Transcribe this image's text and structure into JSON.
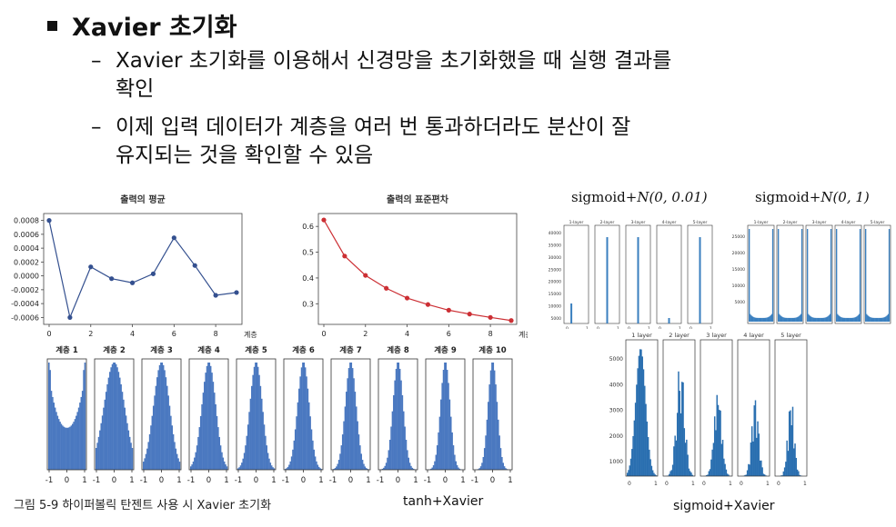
{
  "heading": "Xavier 초기화",
  "bullets": [
    {
      "line1": "Xavier 초기화를 이용해서 신경망을 초기화했을 때 실행 결과를",
      "line2": "확인"
    },
    {
      "line1": "이제 입력 데이터가 계층을 여러 번 통과하더라도 분산이 잘",
      "line2": "유지되는 것을 확인할 수 있음"
    }
  ],
  "figure_caption": "그림 5-9 하이퍼볼릭 탄젠트 사용 시 Xavier 초기화",
  "labels": {
    "tanh_xavier": "tanh+Xavier",
    "sigmoid_small": "sigmoid+",
    "sigmoid_small_dist": "N(0, 0.01)",
    "sigmoid_one": "sigmoid+",
    "sigmoid_one_dist": "N(0, 1)",
    "sigmoid_xavier": "sigmoid+Xavier"
  },
  "chart_data": [
    {
      "type": "line",
      "title": "출력의 평균",
      "xlabel": "계층",
      "x": [
        0,
        1,
        2,
        3,
        4,
        5,
        6,
        7,
        8,
        9
      ],
      "y": [
        0.0008,
        -0.0006,
        0.00013,
        -4e-05,
        -0.0001,
        3e-05,
        0.00055,
        0.00015,
        -0.00028,
        -0.00024
      ],
      "xticks": [
        "0",
        "2",
        "4",
        "6",
        "8"
      ],
      "yticks": [
        "0.0008",
        "0.0006",
        "0.0004",
        "0.0002",
        "0.0000",
        "-0.0002",
        "-0.0004",
        "-0.0006"
      ],
      "ylim": [
        -0.0007,
        0.0009
      ],
      "color": "#34508f"
    },
    {
      "type": "line",
      "title": "출력의 표준편차",
      "xlabel": "계층",
      "x": [
        0,
        1,
        2,
        3,
        4,
        5,
        6,
        7,
        8,
        9
      ],
      "y": [
        0.625,
        0.485,
        0.41,
        0.36,
        0.322,
        0.297,
        0.275,
        0.26,
        0.247,
        0.235
      ],
      "xticks": [
        "0",
        "2",
        "4",
        "6",
        "8"
      ],
      "yticks": [
        "0.6",
        "0.5",
        "0.4",
        "0.3"
      ],
      "ylim": [
        0.22,
        0.65
      ],
      "color": "#cc2f34"
    },
    {
      "type": "bar",
      "chart": "tanh histograms",
      "panels": [
        "계층 1",
        "계층 2",
        "계층 3",
        "계층 4",
        "계층 5",
        "계층 6",
        "계층 7",
        "계층 8",
        "계층 9",
        "계층 10"
      ],
      "xticks": [
        "-1",
        "0",
        "1"
      ],
      "color": "#4a78c0"
    },
    {
      "type": "bar",
      "chart": "sigmoid N(0,0.01) histograms",
      "panels": [
        "1-layer",
        "2-layer",
        "3-layer",
        "4-layer",
        "5-layer"
      ],
      "yticks": [
        "40000",
        "35000",
        "30000",
        "25000",
        "20000",
        "15000",
        "10000",
        "5000"
      ],
      "color": "#3a7fbf"
    },
    {
      "type": "bar",
      "chart": "sigmoid N(0,1) histograms",
      "panels": [
        "1-layer",
        "2-layer",
        "3-layer",
        "4-layer",
        "5-layer"
      ],
      "yticks": [
        "25000",
        "20000",
        "15000",
        "10000",
        "5000"
      ],
      "color": "#3a7fbf"
    },
    {
      "type": "bar",
      "chart": "sigmoid Xavier histograms",
      "panels": [
        "1 layer",
        "2 layer",
        "3 layer",
        "4 layer",
        "5 layer"
      ],
      "yticks": [
        "5000",
        "4000",
        "3000",
        "2000",
        "1000"
      ],
      "color": "#2a6fb0"
    }
  ]
}
